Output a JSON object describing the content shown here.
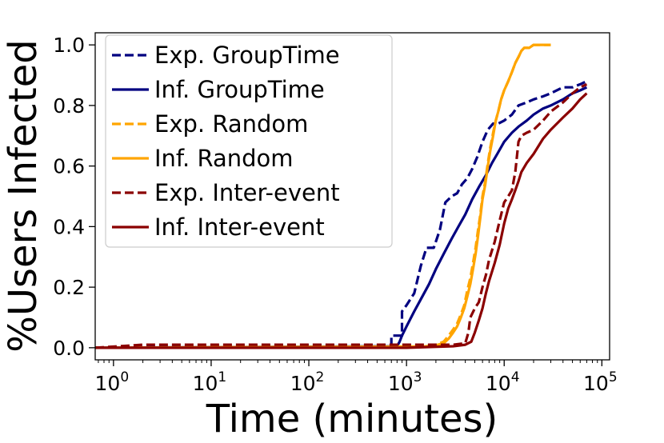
{
  "chart_data": {
    "type": "line",
    "title": "",
    "xlabel": "Time (minutes)",
    "ylabel": "%Users Infected",
    "xscale": "log",
    "xlim": [
      0.65,
      120000
    ],
    "ylim": [
      -0.04,
      1.04
    ],
    "grid": false,
    "legend_position": "top-left",
    "x_ticks": [
      {
        "value": 1,
        "base": "10",
        "exp": "0"
      },
      {
        "value": 10,
        "base": "10",
        "exp": "1"
      },
      {
        "value": 100,
        "base": "10",
        "exp": "2"
      },
      {
        "value": 1000,
        "base": "10",
        "exp": "3"
      },
      {
        "value": 10000,
        "base": "10",
        "exp": "4"
      },
      {
        "value": 100000,
        "base": "10",
        "exp": "5"
      }
    ],
    "y_ticks": [
      {
        "value": 0.0,
        "label": "0.0"
      },
      {
        "value": 0.2,
        "label": "0.2"
      },
      {
        "value": 0.4,
        "label": "0.4"
      },
      {
        "value": 0.6,
        "label": "0.6"
      },
      {
        "value": 0.8,
        "label": "0.8"
      },
      {
        "value": 1.0,
        "label": "1.0"
      }
    ],
    "series": [
      {
        "name": "Exp. GroupTime",
        "color": "#000080",
        "dash": "dashed",
        "x": [
          0.65,
          700,
          700,
          900,
          900,
          1000,
          1200,
          1400,
          1600,
          1900,
          2200,
          2500,
          2900,
          3300,
          3700,
          4200,
          4700,
          5300,
          6000,
          6800,
          7700,
          8700,
          10000,
          12000,
          14000,
          17000,
          20000,
          25000,
          30000,
          40000,
          50000,
          60000,
          70000
        ],
        "y": [
          0.0,
          0.01,
          0.04,
          0.04,
          0.12,
          0.14,
          0.18,
          0.27,
          0.33,
          0.33,
          0.39,
          0.48,
          0.5,
          0.51,
          0.54,
          0.56,
          0.59,
          0.63,
          0.68,
          0.72,
          0.74,
          0.74,
          0.75,
          0.77,
          0.8,
          0.81,
          0.82,
          0.83,
          0.84,
          0.86,
          0.86,
          0.87,
          0.88
        ]
      },
      {
        "name": "Inf. GroupTime",
        "color": "#000080",
        "dash": "solid",
        "x": [
          0.65,
          800,
          850,
          900,
          1000,
          1200,
          1400,
          1700,
          2000,
          2400,
          2900,
          3400,
          4000,
          4700,
          5500,
          6500,
          7500,
          8500,
          10000,
          12000,
          14000,
          17000,
          20000,
          25000,
          30000,
          40000,
          50000,
          60000,
          70000
        ],
        "y": [
          0.0,
          0.005,
          0.02,
          0.04,
          0.07,
          0.12,
          0.16,
          0.21,
          0.26,
          0.31,
          0.36,
          0.4,
          0.44,
          0.49,
          0.53,
          0.57,
          0.61,
          0.64,
          0.68,
          0.71,
          0.73,
          0.75,
          0.77,
          0.79,
          0.8,
          0.82,
          0.84,
          0.85,
          0.86
        ]
      },
      {
        "name": "Exp. Random",
        "color": "#FFA500",
        "dash": "dashed",
        "x": [
          0.65,
          1500,
          2000,
          2400,
          2700,
          3000,
          3300,
          3600,
          3900,
          4200,
          4500,
          4800,
          5100,
          5400,
          5700,
          6000,
          6400,
          6800,
          7200,
          7700,
          8200,
          8700,
          9300,
          10000,
          11000,
          12000,
          13000,
          14000,
          15000,
          16000,
          18000,
          20000,
          22000,
          25000,
          28000,
          30000
        ],
        "y": [
          0.0,
          0.005,
          0.01,
          0.02,
          0.04,
          0.06,
          0.08,
          0.11,
          0.14,
          0.19,
          0.23,
          0.28,
          0.33,
          0.39,
          0.44,
          0.5,
          0.55,
          0.61,
          0.66,
          0.71,
          0.75,
          0.78,
          0.82,
          0.85,
          0.88,
          0.91,
          0.94,
          0.96,
          0.98,
          0.99,
          0.99,
          1.0,
          1.0,
          1.0,
          1.0,
          1.0
        ]
      },
      {
        "name": "Inf. Random",
        "color": "#FFA500",
        "dash": "solid",
        "x": [
          0.65,
          1500,
          2000,
          2400,
          2700,
          3000,
          3300,
          3600,
          3900,
          4200,
          4500,
          4800,
          5100,
          5400,
          5700,
          6000,
          6400,
          6800,
          7200,
          7700,
          8200,
          8700,
          9300,
          10000,
          11000,
          12000,
          13000,
          14000,
          15000,
          16000,
          18000,
          20000,
          22000,
          25000,
          28000,
          30000
        ],
        "y": [
          0.0,
          0.004,
          0.008,
          0.015,
          0.03,
          0.05,
          0.07,
          0.1,
          0.13,
          0.17,
          0.21,
          0.26,
          0.31,
          0.37,
          0.43,
          0.49,
          0.54,
          0.6,
          0.65,
          0.7,
          0.75,
          0.78,
          0.82,
          0.85,
          0.88,
          0.91,
          0.94,
          0.96,
          0.98,
          0.99,
          0.99,
          1.0,
          1.0,
          1.0,
          1.0,
          1.0
        ]
      },
      {
        "name": "Exp. Inter-event",
        "color": "#8B0000",
        "dash": "dashed",
        "x": [
          0.65,
          2,
          100,
          1000,
          3000,
          4000,
          4300,
          4500,
          5000,
          5500,
          6000,
          6500,
          7000,
          8000,
          9000,
          10000,
          11000,
          12000,
          13000,
          14000,
          15000,
          17000,
          20000,
          25000,
          30000,
          40000,
          50000,
          60000,
          70000
        ],
        "y": [
          0.0,
          0.01,
          0.01,
          0.01,
          0.01,
          0.015,
          0.05,
          0.1,
          0.13,
          0.15,
          0.2,
          0.24,
          0.29,
          0.35,
          0.42,
          0.48,
          0.5,
          0.52,
          0.58,
          0.68,
          0.7,
          0.71,
          0.72,
          0.75,
          0.78,
          0.81,
          0.84,
          0.86,
          0.87
        ]
      },
      {
        "name": "Inf. Inter-event",
        "color": "#8B0000",
        "dash": "solid",
        "x": [
          0.65,
          1000,
          3000,
          4000,
          4600,
          5000,
          5500,
          6000,
          6500,
          7000,
          8000,
          9000,
          10000,
          11000,
          12000,
          13000,
          14000,
          15000,
          17000,
          20000,
          25000,
          30000,
          40000,
          50000,
          60000,
          70000
        ],
        "y": [
          0.0,
          0.0,
          0.005,
          0.01,
          0.02,
          0.05,
          0.09,
          0.13,
          0.18,
          0.22,
          0.28,
          0.34,
          0.41,
          0.46,
          0.49,
          0.52,
          0.55,
          0.58,
          0.61,
          0.64,
          0.69,
          0.72,
          0.76,
          0.79,
          0.82,
          0.84
        ]
      }
    ]
  }
}
